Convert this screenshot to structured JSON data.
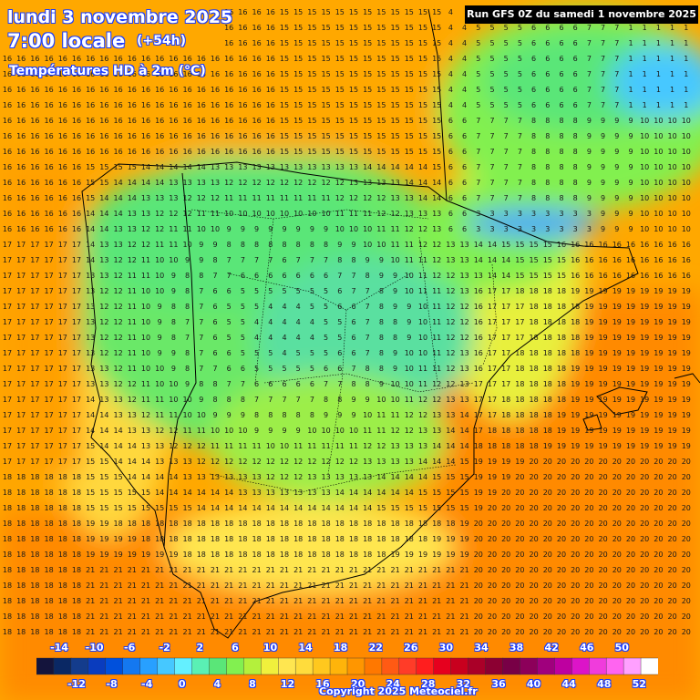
{
  "header": {
    "date": "lundi 3 novembre 2025",
    "time": "7:00 locale",
    "offset": "(+54h)",
    "variable": "Températures HD à 2m (°C)"
  },
  "run_label": "Run GFS 0Z du samedi 1 novembre 2025",
  "copyright": "Copyright 2025 Meteociel.fr",
  "legend": {
    "top_labels": [
      "-14",
      "-10",
      "-6",
      "-2",
      "2",
      "6",
      "10",
      "14",
      "18",
      "22",
      "26",
      "30",
      "34",
      "38",
      "42",
      "46",
      "50"
    ],
    "bottom_labels": [
      "-12",
      "-8",
      "-4",
      "0",
      "4",
      "8",
      "12",
      "16",
      "20",
      "24",
      "28",
      "32",
      "36",
      "40",
      "44",
      "48",
      "52"
    ],
    "colors": [
      "#14143c",
      "#0a2864",
      "#143c8c",
      "#0a3cbe",
      "#0050dc",
      "#1478f0",
      "#28a0ff",
      "#46c8ff",
      "#64f0ff",
      "#5af0b4",
      "#5ae678",
      "#82f050",
      "#b4f03c",
      "#f0f03c",
      "#ffe650",
      "#ffdc3c",
      "#ffc81e",
      "#ffb40a",
      "#ff9600",
      "#ff7800",
      "#ff5a14",
      "#ff3c28",
      "#ff1e1e",
      "#e6001e",
      "#c8001e",
      "#aa0028",
      "#8c0032",
      "#780046",
      "#8c005a",
      "#a0007d",
      "#be00a0",
      "#dc14c8",
      "#f03cdc",
      "#ff64f0",
      "#ffa0ff",
      "#ffffff"
    ]
  },
  "map": {
    "region": "Iberian Peninsula",
    "value_range_c": [
      0,
      22
    ],
    "note_values": "grid of temperature values in °C"
  }
}
